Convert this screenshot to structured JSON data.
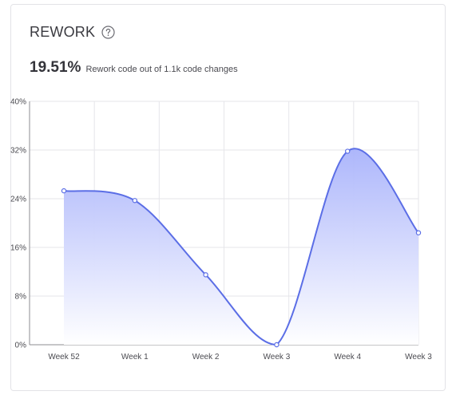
{
  "card": {
    "title": "REWORK",
    "summary_value": "19.51%",
    "summary_text": "Rework code out of 1.1k code changes"
  },
  "icons": {
    "help": "question-circle-icon"
  },
  "colors": {
    "line": "#5b6ee6",
    "fill_top": "#a9b3fb",
    "fill_bottom": "#ffffff",
    "grid": "#e6e6ea",
    "axis": "#8c8c92",
    "point_fill": "#ffffff"
  },
  "chart_data": {
    "type": "area",
    "categories": [
      "Week 52",
      "Week 1",
      "Week 2",
      "Week 3",
      "Week 4",
      "Week 3"
    ],
    "series": [
      {
        "values": [
          25.3,
          23.7,
          11.5,
          0,
          31.8,
          18.4
        ]
      }
    ],
    "yticks": [
      "0%",
      "8%",
      "16%",
      "24%",
      "32%",
      "40%"
    ],
    "ylim": [
      0,
      40
    ],
    "grid": true,
    "smooth": true
  }
}
